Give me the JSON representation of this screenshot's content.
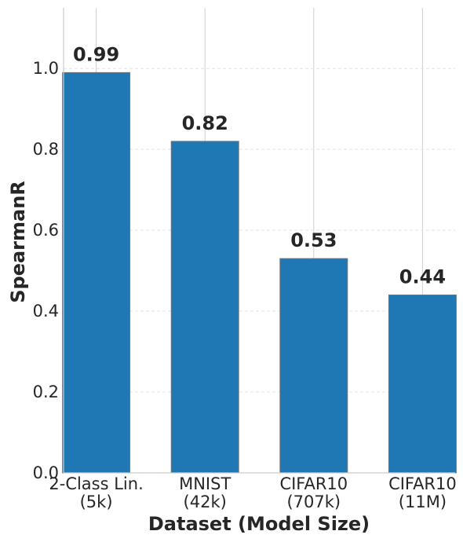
{
  "chart_data": {
    "type": "bar",
    "categories": [
      [
        "2-Class Lin.",
        "(5k)"
      ],
      [
        "MNIST",
        "(42k)"
      ],
      [
        "CIFAR10",
        "(707k)"
      ],
      [
        "CIFAR10",
        "(11M)"
      ]
    ],
    "values": [
      0.99,
      0.82,
      0.53,
      0.44
    ],
    "data_labels": [
      "0.99",
      "0.82",
      "0.53",
      "0.44"
    ],
    "xlabel": "Dataset (Model Size)",
    "ylabel": "SpearmanR",
    "ylim": [
      0,
      1.15
    ],
    "yticks": [
      0.0,
      0.2,
      0.4,
      0.6,
      0.8,
      1.0
    ],
    "ytick_labels": [
      "0.0",
      "0.2",
      "0.4",
      "0.6",
      "0.8",
      "1.0"
    ],
    "grid": true,
    "bar_color": "#1f77b4",
    "bar_edge_color": "#777777"
  }
}
